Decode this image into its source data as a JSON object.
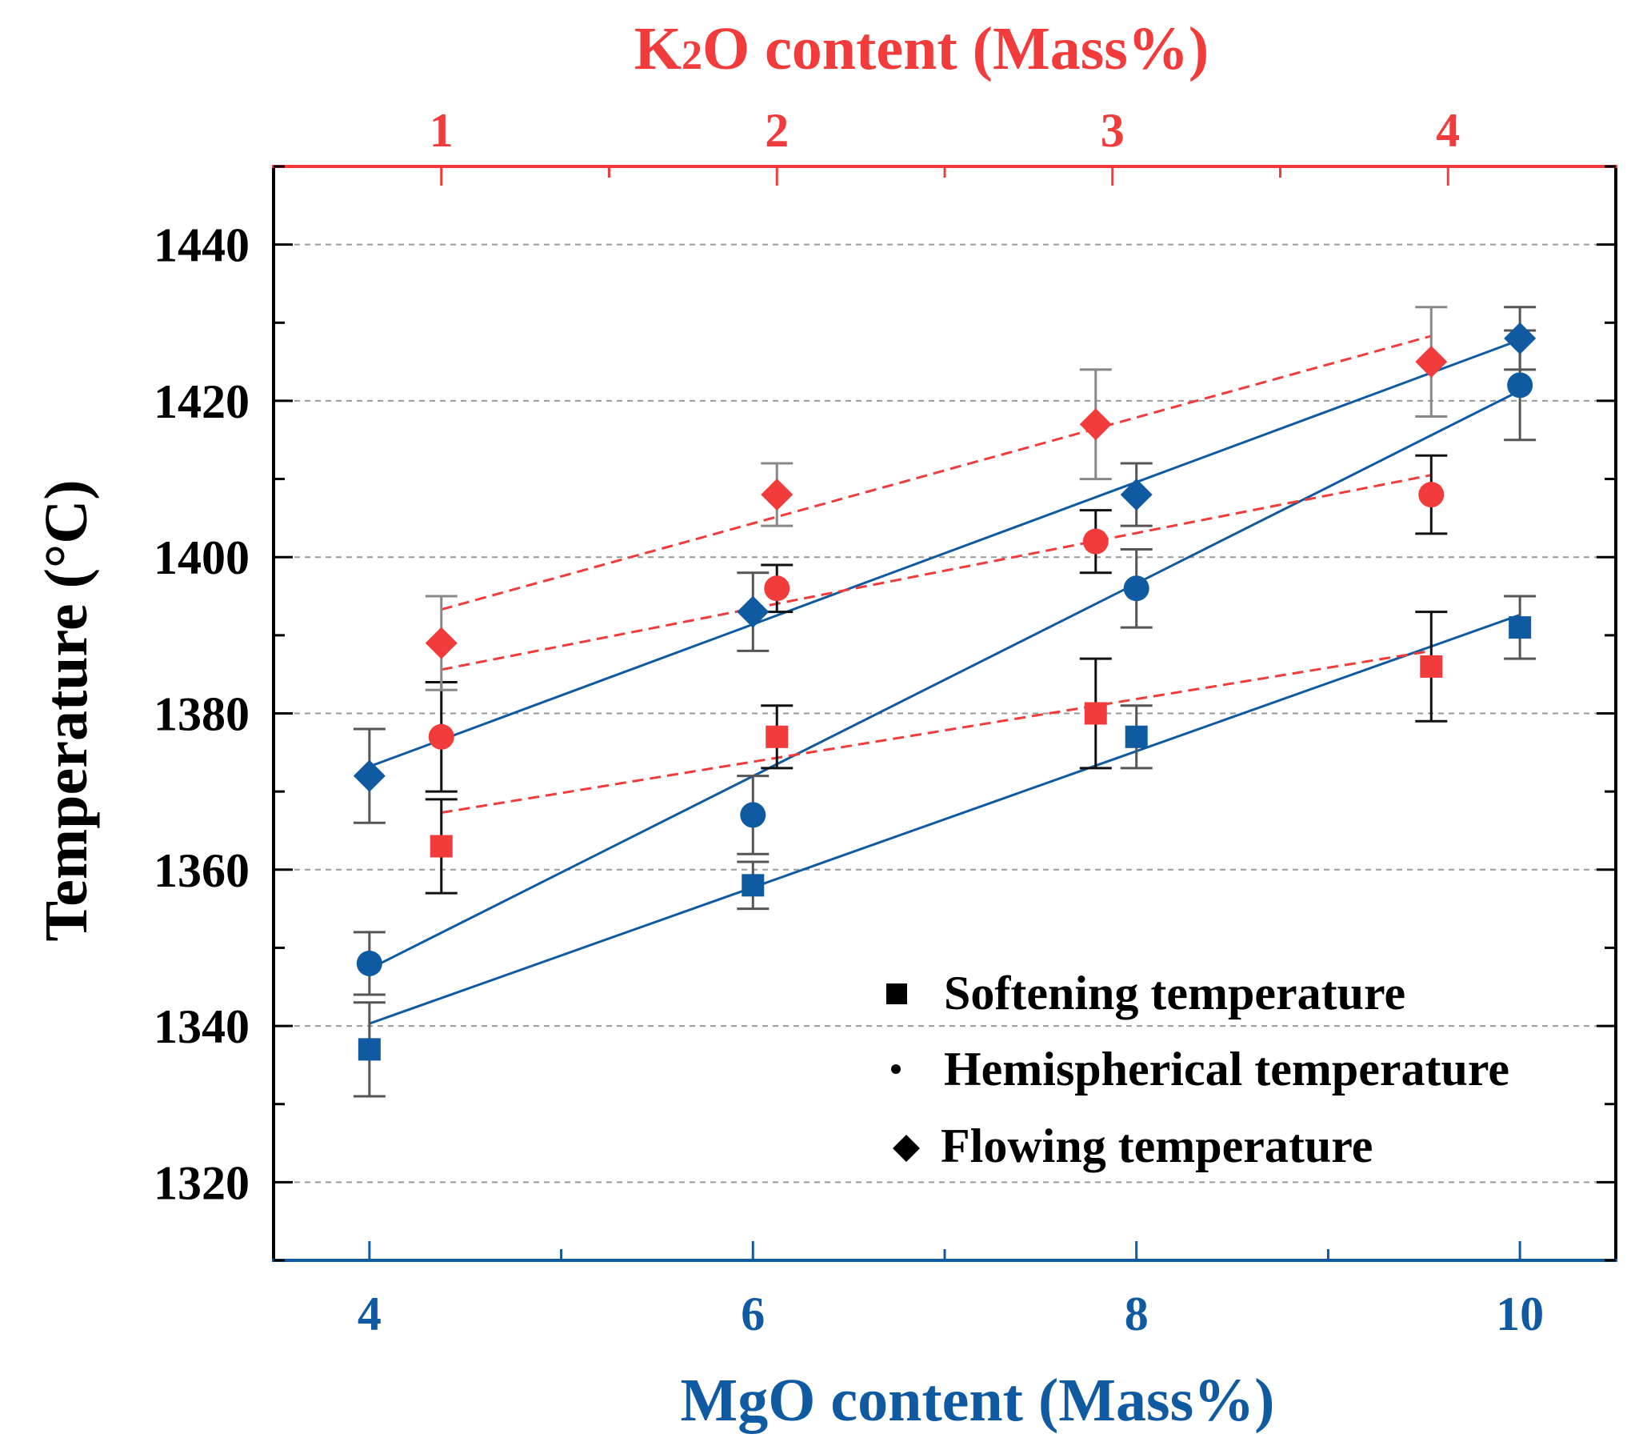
{
  "chart_data": {
    "type": "scatter",
    "title": "",
    "ylabel": "Temperature (°C)",
    "ylim": [
      1310,
      1450
    ],
    "yticks": [
      1320,
      1340,
      1360,
      1380,
      1400,
      1420,
      1440
    ],
    "grid": "horizontal dashed",
    "bottom_axis": {
      "label": "MgO content (Mass%)",
      "range": [
        3.5,
        10.5
      ],
      "ticks": [
        4,
        6,
        8,
        10
      ],
      "color": "#0f5aa1"
    },
    "top_axis": {
      "label": "K2O content (Mass%)",
      "label_prefix": "K",
      "label_subscript": "2",
      "label_suffix": "O content (Mass%)",
      "range": [
        0.5,
        4.5
      ],
      "ticks": [
        1,
        2,
        3,
        4
      ],
      "color": "#f23b3b"
    },
    "legend": {
      "position": "bottom-right",
      "entries": [
        {
          "name": "Softening temperature",
          "marker": "square"
        },
        {
          "name": "Hemispherical temperature",
          "marker": "circle"
        },
        {
          "name": "Flowing temperature",
          "marker": "diamond"
        }
      ]
    },
    "series": [
      {
        "name": "MgO Softening",
        "axis": "bottom",
        "marker": "square",
        "color": "#0f5aa1",
        "errcolor": "#555555",
        "x": [
          4,
          6,
          8,
          10
        ],
        "y": [
          1337,
          1358,
          1377,
          1391
        ],
        "err": [
          6,
          3,
          4,
          4
        ],
        "fit": {
          "x": [
            4,
            10
          ],
          "y": [
            1340.3,
            1392.6
          ],
          "style": "solid"
        }
      },
      {
        "name": "MgO Hemispherical",
        "axis": "bottom",
        "marker": "circle",
        "color": "#0f5aa1",
        "errcolor": "#555555",
        "x": [
          4,
          6,
          8,
          10
        ],
        "y": [
          1348,
          1367,
          1396,
          1422
        ],
        "err": [
          4,
          5,
          5,
          7
        ],
        "fit": {
          "x": [
            4,
            10
          ],
          "y": [
            1347.3,
            1421.3
          ],
          "style": "solid"
        }
      },
      {
        "name": "MgO Flowing",
        "axis": "bottom",
        "marker": "diamond",
        "color": "#0f5aa1",
        "errcolor": "#555555",
        "x": [
          4,
          6,
          8,
          10
        ],
        "y": [
          1372,
          1393,
          1408,
          1428
        ],
        "err": [
          6,
          5,
          4,
          4
        ],
        "fit": {
          "x": [
            4,
            10
          ],
          "y": [
            1373.2,
            1427.8
          ],
          "style": "solid"
        }
      },
      {
        "name": "K2O Softening",
        "axis": "top",
        "marker": "square",
        "color": "#f23b3b",
        "errcolor": "#111111",
        "x": [
          1,
          2,
          2.95,
          3.95
        ],
        "y": [
          1363,
          1377,
          1380,
          1386
        ],
        "err": [
          6,
          4,
          7,
          7
        ],
        "fit": {
          "x": [
            1,
            3.95
          ],
          "y": [
            1367.3,
            1388.0
          ],
          "style": "dashed"
        }
      },
      {
        "name": "K2O Hemispherical",
        "axis": "top",
        "marker": "circle",
        "color": "#f23b3b",
        "errcolor": "#111111",
        "x": [
          1,
          2,
          2.95,
          3.95
        ],
        "y": [
          1377,
          1396,
          1402,
          1408
        ],
        "err": [
          7,
          3,
          4,
          5
        ],
        "fit": {
          "x": [
            1,
            3.95
          ],
          "y": [
            1385.6,
            1410.5
          ],
          "style": "dashed"
        }
      },
      {
        "name": "K2O Flowing",
        "axis": "top",
        "marker": "diamond",
        "color": "#f23b3b",
        "errcolor": "#888888",
        "x": [
          1,
          2,
          2.95,
          3.95
        ],
        "y": [
          1389,
          1408,
          1417,
          1425
        ],
        "err": [
          6,
          4,
          7,
          7
        ],
        "fit": {
          "x": [
            1,
            3.95
          ],
          "y": [
            1393.3,
            1428.3
          ],
          "style": "dashed"
        }
      }
    ]
  }
}
